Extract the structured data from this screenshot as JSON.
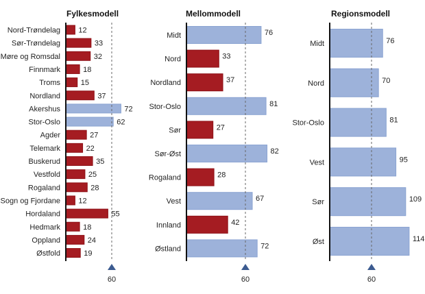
{
  "colors": {
    "below": "#a51c22",
    "below_border": "#8e1117",
    "above": "#9db2da",
    "above_border": "#8ba4d2",
    "reference_marker": "#3c5b90",
    "axis": "#111111",
    "reference_line": "#666666"
  },
  "chart_data": [
    {
      "type": "bar",
      "orientation": "horizontal",
      "title": "Fylkesmodell",
      "reference_value": 60,
      "reference_label": "60",
      "categories": [
        "Nord-Trøndelag",
        "Sør-Trøndelag",
        "Møre og Romsdal",
        "Finnmark",
        "Troms",
        "Nordland",
        "Akershus",
        "Stor-Oslo",
        "Agder",
        "Telemark",
        "Buskerud",
        "Vestfold",
        "Rogaland",
        "Sogn og Fjordane",
        "Hordaland",
        "Hedmark",
        "Oppland",
        "Østfold"
      ],
      "values": [
        12,
        33,
        32,
        18,
        15,
        37,
        72,
        62,
        27,
        22,
        35,
        25,
        28,
        12,
        55,
        18,
        24,
        19
      ],
      "value_labels": [
        "12",
        "33",
        "32",
        "18",
        "15",
        "37",
        "72",
        "62",
        "27",
        "22",
        "35",
        "25",
        "28",
        "12",
        "55",
        "18",
        "24",
        "19"
      ],
      "bar_color_rule": "red below 60, blue above 60"
    },
    {
      "type": "bar",
      "orientation": "horizontal",
      "title": "Mellommodell",
      "reference_value": 60,
      "reference_label": "60",
      "categories": [
        "Midt",
        "Nord",
        "Nordland",
        "Stor-Oslo",
        "Sør",
        "Sør-Øst",
        "Rogaland",
        "Vest",
        "Innland",
        "Østland"
      ],
      "values": [
        76,
        33,
        37,
        81,
        27,
        82,
        28,
        67,
        42,
        72
      ],
      "value_labels": [
        "76",
        "33",
        "37",
        "81",
        "27",
        "82",
        "28",
        "67",
        "42",
        "72"
      ],
      "bar_color_rule": "red below 60, blue above 60"
    },
    {
      "type": "bar",
      "orientation": "horizontal",
      "title": "Regionsmodell",
      "reference_value": 60,
      "reference_label": "60",
      "categories": [
        "Midt",
        "Nord",
        "Stor-Oslo",
        "Vest",
        "Sør",
        "Øst"
      ],
      "values": [
        76,
        70,
        81,
        95,
        109,
        114
      ],
      "value_labels": [
        "76",
        "70",
        "81",
        "95",
        "109",
        "114"
      ],
      "bar_color_rule": "red below 60, blue above 60"
    }
  ]
}
